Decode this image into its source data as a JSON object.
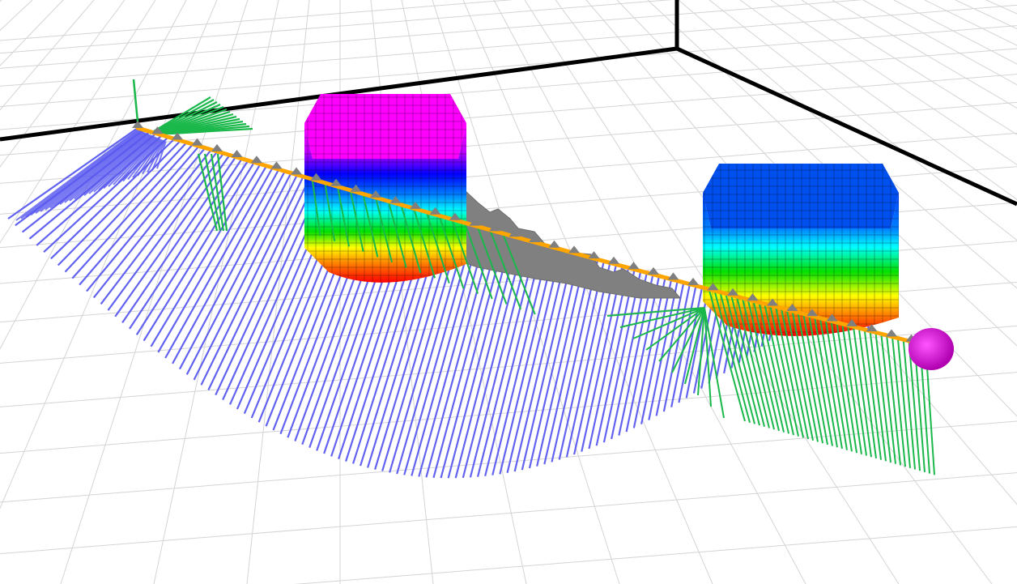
{
  "scene": {
    "background": "#ffffff",
    "grid_color": "#d4d4d4",
    "frame_color": "#000000",
    "path_color": "#ffa500",
    "pose_color": "#7f7f7f",
    "obstacle_gray": "#808080",
    "lidar_blue": "#5a5af0",
    "arrow_green": "#1ab84a",
    "goal_color": "#e619e6",
    "heightmap_colors": [
      "#ff0000",
      "#ff8000",
      "#ffff00",
      "#00e000",
      "#00ffff",
      "#0080ff",
      "#0000ff",
      "#8000ff",
      "#ff00ff"
    ],
    "objects": [
      "ground-grid",
      "world-frame",
      "planned-path",
      "lidar-rays",
      "direction-arrows",
      "voxel-obstacle-1",
      "voxel-obstacle-2",
      "gray-pointcloud",
      "goal-marker"
    ]
  }
}
